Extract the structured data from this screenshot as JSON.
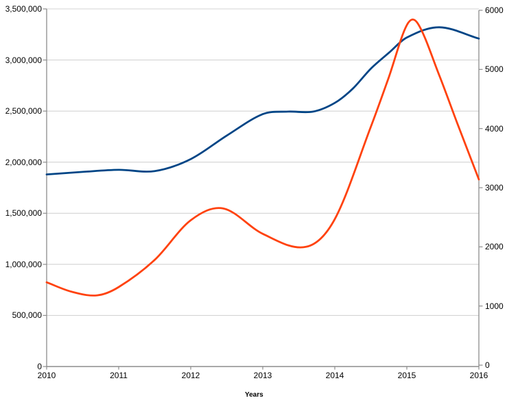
{
  "chart_data": {
    "type": "line",
    "title": "",
    "xlabel": "Years",
    "legend": "none",
    "grid": "horizontal-only",
    "x_range": [
      2010,
      2016
    ],
    "x_ticks": [
      "2010",
      "2011",
      "2012",
      "2013",
      "2014",
      "2015",
      "2016"
    ],
    "axes": {
      "left": {
        "min": 0,
        "max": 3500000,
        "step": 500000,
        "tick_labels": [
          "0",
          "500,000",
          "1,000,000",
          "1,500,000",
          "2,000,000",
          "2,500,000",
          "3,000,000",
          "3,500,000"
        ]
      },
      "right": {
        "min": 0,
        "max": 6000,
        "step": 1000,
        "tick_labels": [
          "0",
          "1000",
          "2000",
          "3000",
          "4000",
          "5000",
          "6000"
        ]
      }
    },
    "series": [
      {
        "id": "blue",
        "axis": "left",
        "color": "#004586",
        "style": "smooth",
        "yearly_values": {
          "2010": 1880000,
          "2011": 1925000,
          "2012": 2030000,
          "2013": 2470000,
          "2014": 2580000,
          "2015": 3220000,
          "2016": 3210000
        },
        "points": [
          [
            2010.0,
            1880000
          ],
          [
            2010.5,
            1905000
          ],
          [
            2011.0,
            1925000
          ],
          [
            2011.5,
            1913000
          ],
          [
            2012.0,
            2030000
          ],
          [
            2012.5,
            2260000
          ],
          [
            2013.0,
            2470000
          ],
          [
            2013.35,
            2495000
          ],
          [
            2013.7,
            2495000
          ],
          [
            2014.0,
            2580000
          ],
          [
            2014.25,
            2720000
          ],
          [
            2014.5,
            2915000
          ],
          [
            2014.75,
            3070000
          ],
          [
            2015.0,
            3220000
          ],
          [
            2015.45,
            3320000
          ],
          [
            2016.0,
            3210000
          ]
        ]
      },
      {
        "id": "red",
        "axis": "right",
        "color": "#FF420E",
        "style": "smooth",
        "yearly_values": {
          "2010": 1400,
          "2011": 1320,
          "2012": 2450,
          "2013": 2220,
          "2014": 2470,
          "2015": 5750,
          "2016": 3140
        },
        "points": [
          [
            2010.0,
            1400
          ],
          [
            2010.35,
            1240
          ],
          [
            2010.7,
            1180
          ],
          [
            2011.0,
            1320
          ],
          [
            2011.5,
            1780
          ],
          [
            2012.0,
            2450
          ],
          [
            2012.45,
            2650
          ],
          [
            2013.0,
            2220
          ],
          [
            2013.6,
            2000
          ],
          [
            2014.0,
            2470
          ],
          [
            2014.5,
            4030
          ],
          [
            2014.75,
            4870
          ],
          [
            2015.0,
            5750
          ],
          [
            2015.15,
            5780
          ],
          [
            2015.45,
            4900
          ],
          [
            2015.7,
            4090
          ],
          [
            2016.0,
            3140
          ]
        ]
      }
    ]
  },
  "colors": {
    "background": "#ffffff",
    "grid": "#d3d3d3",
    "axis": "#8c8c8c",
    "label_text": "#000000",
    "blue_series": "#004586",
    "red_series": "#FF420E"
  }
}
